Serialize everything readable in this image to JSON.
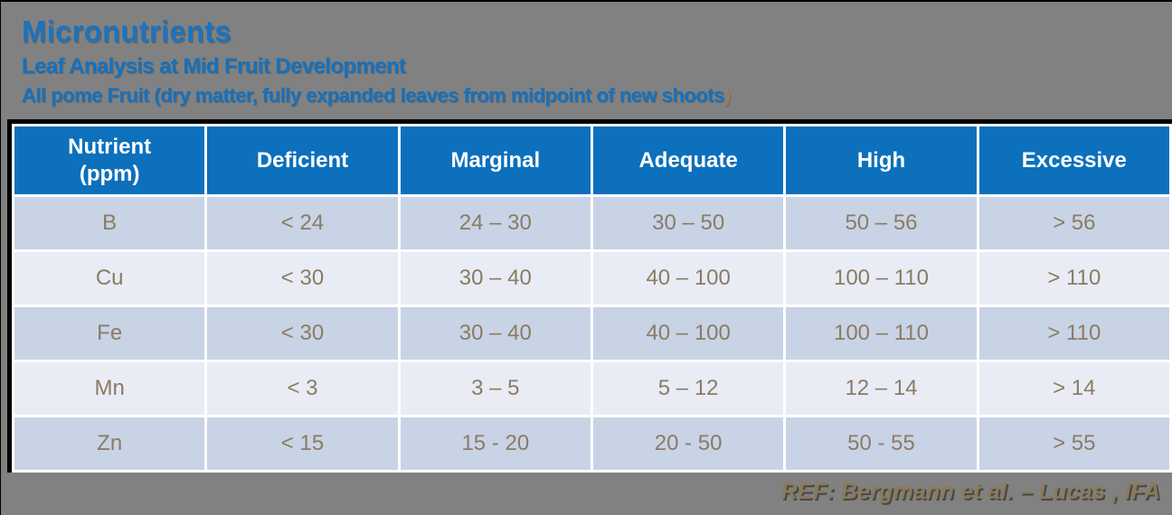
{
  "slide": {
    "title": "Micronutrients",
    "subtitle": "Leaf Analysis at Mid Fruit Development",
    "qualifier_main": "All pome Fruit (dry matter, fully expanded leaves from midpoint of new shoots",
    "qualifier_paren": ")",
    "reference": "REF: Bergmann et al. – Lucas , IFA"
  },
  "colors": {
    "background": "#818181",
    "title_blue": "#1b73be",
    "header_blue": "#0c70bc",
    "row_odd": "#c9d3e6",
    "row_even": "#e9ecf5",
    "body_text": "#8a7c63",
    "reference_tan": "#8a7a5b"
  },
  "table": {
    "columns": [
      "Nutrient\n(ppm)",
      "Deficient",
      "Marginal",
      "Adequate",
      "High",
      "Excessive"
    ],
    "rows": [
      {
        "nutrient": "B",
        "deficient": "< 24",
        "marginal": "24 – 30",
        "adequate": "30 – 50",
        "high": "50 – 56",
        "excessive": "> 56"
      },
      {
        "nutrient": "Cu",
        "deficient": "< 30",
        "marginal": "30 – 40",
        "adequate": "40 – 100",
        "high": "100 – 110",
        "excessive": "> 110"
      },
      {
        "nutrient": "Fe",
        "deficient": "< 30",
        "marginal": "30 – 40",
        "adequate": "40 – 100",
        "high": "100 – 110",
        "excessive": "> 110"
      },
      {
        "nutrient": "Mn",
        "deficient": "< 3",
        "marginal": "3 – 5",
        "adequate": "5 – 12",
        "high": "12 – 14",
        "excessive": "> 14"
      },
      {
        "nutrient": "Zn",
        "deficient": "< 15",
        "marginal": "15 - 20",
        "adequate": "20 - 50",
        "high": "50 - 55",
        "excessive": "> 55"
      }
    ]
  }
}
